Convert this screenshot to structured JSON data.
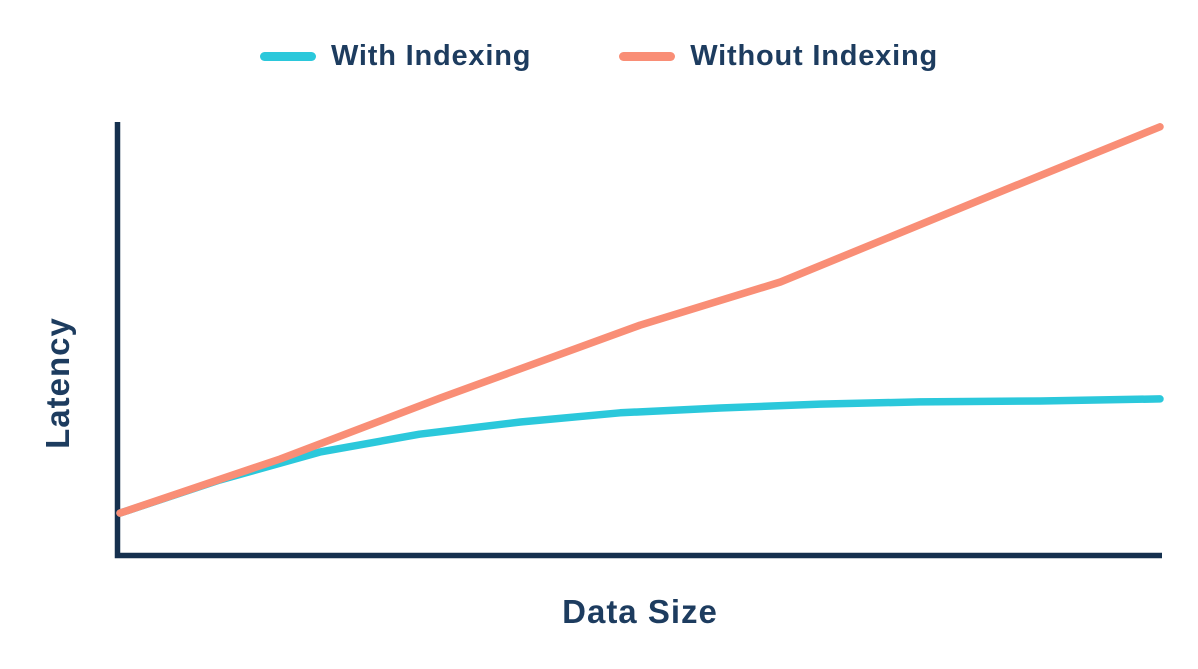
{
  "legend": {
    "position": "top-center",
    "items": [
      {
        "label": "With Indexing",
        "color": "#2BC8DB"
      },
      {
        "label": "Without Indexing",
        "color": "#F98E76"
      }
    ]
  },
  "axes": {
    "xlabel": "Data Size",
    "ylabel": "Latency",
    "color": "#15304E",
    "ticks": "none",
    "grid": false
  },
  "chart_data": {
    "type": "line",
    "title": "",
    "xlabel": "Data Size",
    "ylabel": "Latency",
    "legend_position": "top-center",
    "grid": false,
    "tick_labels": "none (qualitative axes, values normalized 0-1)",
    "xlim": [
      0,
      1
    ],
    "ylim": [
      0,
      1
    ],
    "series": [
      {
        "name": "With Indexing",
        "color": "#2BC8DB",
        "shape": "logarithmic-flattening",
        "points": [
          [
            0.0,
            0.103
          ],
          [
            0.096,
            0.179
          ],
          [
            0.192,
            0.243
          ],
          [
            0.288,
            0.284
          ],
          [
            0.385,
            0.312
          ],
          [
            0.481,
            0.333
          ],
          [
            0.577,
            0.344
          ],
          [
            0.673,
            0.353
          ],
          [
            0.769,
            0.358
          ],
          [
            0.885,
            0.36
          ],
          [
            1.0,
            0.365
          ]
        ]
      },
      {
        "name": "Without Indexing",
        "color": "#F98E76",
        "shape": "near-linear",
        "points": [
          [
            0.0,
            0.103
          ],
          [
            0.154,
            0.227
          ],
          [
            0.308,
            0.367
          ],
          [
            0.5,
            0.534
          ],
          [
            0.635,
            0.633
          ],
          [
            0.827,
            0.821
          ],
          [
            1.0,
            0.989
          ]
        ]
      }
    ]
  }
}
